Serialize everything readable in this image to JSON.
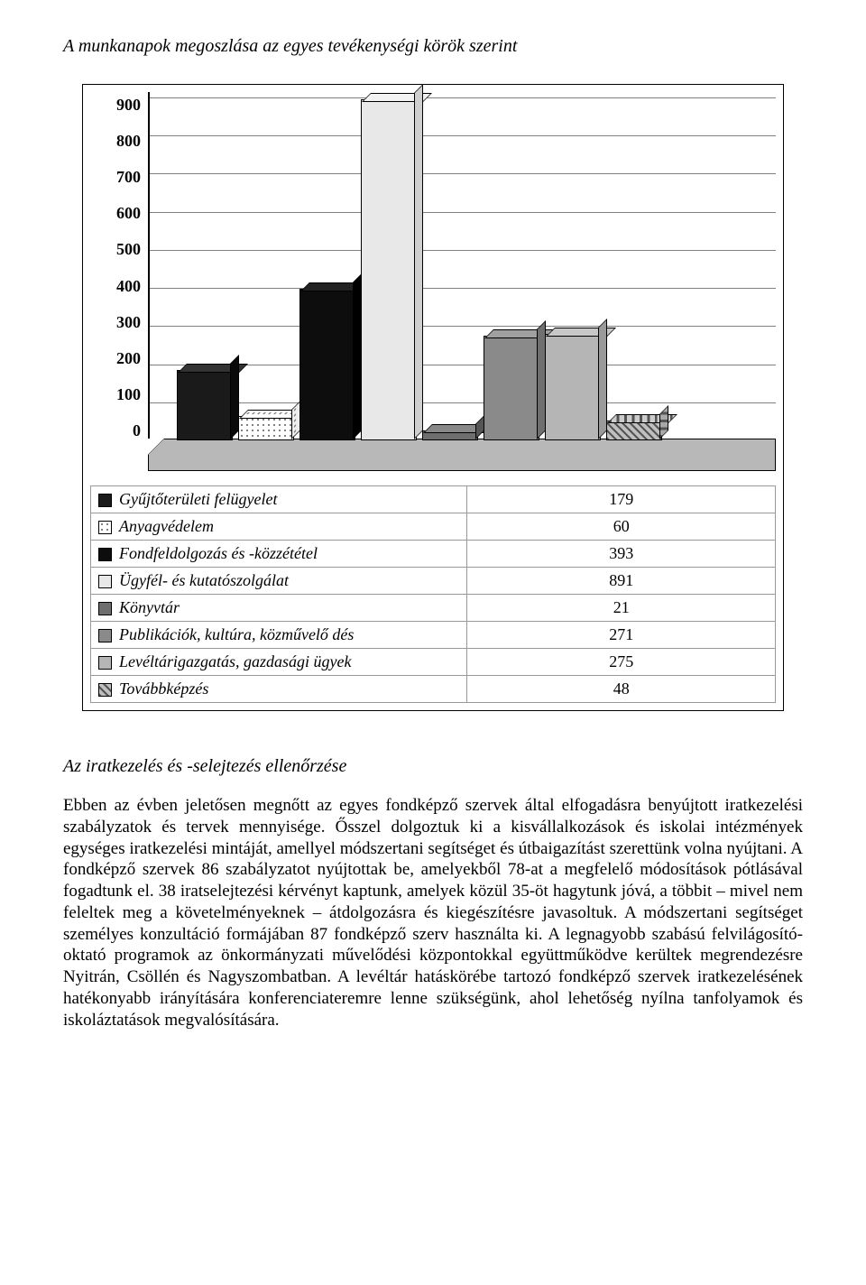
{
  "title": "A munkanapok megoszlása az egyes tevékenységi körök szerint",
  "chart": {
    "type": "bar",
    "ymax": 900,
    "ytick_step": 100,
    "yticks": [
      "900",
      "800",
      "700",
      "600",
      "500",
      "400",
      "300",
      "200",
      "100",
      "0"
    ],
    "grid_color": "#808080",
    "floor_color": "#b8b8b8",
    "bars": [
      {
        "name": "Gyűjtőterületi felügyelet",
        "value": 179,
        "fill": "#1a1a1a",
        "top": "#333333",
        "side": "#0a0a0a",
        "pattern": "none"
      },
      {
        "name": "Anyagvédelem",
        "value": 60,
        "fill": "#ffffff",
        "top": "#ffffff",
        "side": "#eeeeee",
        "pattern": "dots"
      },
      {
        "name": "Fondfeldolgozás és -közzététel",
        "value": 393,
        "fill": "#0d0d0d",
        "top": "#222222",
        "side": "#000000",
        "pattern": "none"
      },
      {
        "name": "Ügyfél- és kutatószolgálat",
        "value": 891,
        "fill": "#e8e8e8",
        "top": "#f2f2f2",
        "side": "#cfcfcf",
        "pattern": "none"
      },
      {
        "name": "Könyvtár",
        "value": 21,
        "fill": "#6e6e6e",
        "top": "#888888",
        "side": "#555555",
        "pattern": "none"
      },
      {
        "name": "Publikációk, kultúra, közművelő dés",
        "value": 271,
        "fill": "#8a8a8a",
        "top": "#a0a0a0",
        "side": "#6f6f6f",
        "pattern": "none"
      },
      {
        "name": "Levéltárigazgatás, gazdasági ügyek",
        "value": 275,
        "fill": "#b5b5b5",
        "top": "#c8c8c8",
        "side": "#9a9a9a",
        "pattern": "none"
      },
      {
        "name": "Továbbképzés",
        "value": 48,
        "fill": "#bfbfbf",
        "top": "#cccccc",
        "side": "#a8a8a8",
        "pattern": "hatch"
      }
    ]
  },
  "legend_rows": [
    {
      "label": "Gyűjtőterületi felügyelet",
      "value": "179",
      "swatch": "#1a1a1a",
      "pattern": "none"
    },
    {
      "label": "Anyagvédelem",
      "value": "60",
      "swatch": "#ffffff",
      "pattern": "dots"
    },
    {
      "label": "Fondfeldolgozás és -közzététel",
      "value": "393",
      "swatch": "#0d0d0d",
      "pattern": "none"
    },
    {
      "label": "Ügyfél- és kutatószolgálat",
      "value": "891",
      "swatch": "#e8e8e8",
      "pattern": "none"
    },
    {
      "label": "Könyvtár",
      "value": "21",
      "swatch": "#6e6e6e",
      "pattern": "none"
    },
    {
      "label": "Publikációk, kultúra, közművelő dés",
      "value": "271",
      "swatch": "#8a8a8a",
      "pattern": "none"
    },
    {
      "label": "Levéltárigazgatás, gazdasági ügyek",
      "value": "275",
      "swatch": "#b5b5b5",
      "pattern": "none"
    },
    {
      "label": "Továbbképzés",
      "value": "48",
      "swatch": "#bfbfbf",
      "pattern": "hatch"
    }
  ],
  "section_heading": "Az iratkezelés és -selejtezés ellenőrzése",
  "body_text": "Ebben az évben jeletősen megnőtt az egyes fondképző szervek által elfogadásra benyújtott iratkezelési szabályzatok és tervek mennyisége. Ősszel dolgoztuk ki a kisvállalkozások és iskolai intézmények egységes iratkezelési mintáját, amellyel módszertani segítséget és útbaigazítást szerettünk volna nyújtani. A fondképző szervek 86 szabályzatot nyújtottak be, amelyekből 78-at a megfelelő módosítások pótlásával fogadtunk el. 38 iratselejtezési kérvényt kaptunk, amelyek közül 35-öt hagytunk jóvá, a többit – mivel nem feleltek meg a követelményeknek – átdolgozásra és kiegészítésre javasoltuk. A módszertani segítséget személyes konzultáció formájában 87 fondképző szerv használta ki. A legnagyobb szabású felvilágosító-oktató programok az önkormányzati művelődési központokkal együttműködve kerültek megrendezésre Nyitrán, Csöllén és Nagyszombatban. A levéltár hatáskörébe tartozó fondképző szervek iratkezelésének hatékonyabb irányítására konferenciateremre lenne szükségünk, ahol lehetőség nyílna tanfolyamok és iskoláztatások megvalósítására."
}
